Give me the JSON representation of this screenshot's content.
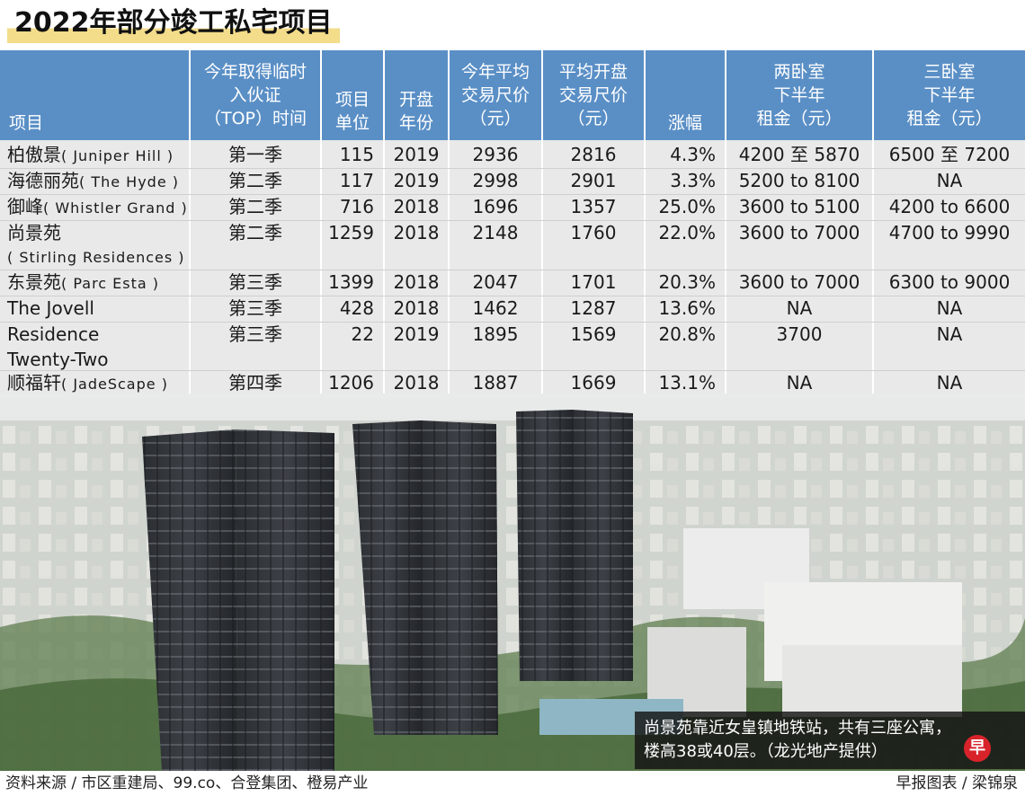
{
  "title": "2022年部分竣工私宅项目",
  "headers": [
    "项目",
    "今年取得临时\n入伙证\n（TOP）时间",
    "项目\n单位",
    "开盘\n年份",
    "今年平均\n交易尺价\n（元）",
    "平均开盘\n交易尺价\n（元）",
    "涨幅",
    "两卧室\n下半年\n租金（元）",
    "三卧室\n下半年\n租金（元）"
  ],
  "rows": [
    {
      "name_cn": "柏傲景",
      "name_en": "( Juniper Hill )",
      "top": "第一季",
      "units": "115",
      "year": "2019",
      "avg_psf": "2936",
      "launch_psf": "2816",
      "rise": "4.3%",
      "rent2": "4200 至 5870",
      "rent3": "6500 至 7200"
    },
    {
      "name_cn": "海德丽苑",
      "name_en": "( The Hyde )",
      "top": "第二季",
      "units": "117",
      "year": "2019",
      "avg_psf": "2998",
      "launch_psf": "2901",
      "rise": "3.3%",
      "rent2": "5200 to 8100",
      "rent3": "NA"
    },
    {
      "name_cn": "御峰",
      "name_en": "( Whistler Grand )",
      "top": "第二季",
      "units": "716",
      "year": "2018",
      "avg_psf": "1696",
      "launch_psf": "1357",
      "rise": "25.0%",
      "rent2": "3600 to 5100",
      "rent3": "4200 to 6600"
    },
    {
      "name_cn": "尚景苑",
      "name_en": "( Stirling Residences )",
      "top": "第二季",
      "units": "1259",
      "year": "2018",
      "avg_psf": "2148",
      "launch_psf": "1760",
      "rise": "22.0%",
      "rent2": "3600 to 7000",
      "rent3": "4700 to 9990"
    },
    {
      "name_cn": "东景苑",
      "name_en": "( Parc Esta )",
      "top": "第三季",
      "units": "1399",
      "year": "2018",
      "avg_psf": "2047",
      "launch_psf": "1701",
      "rise": "20.3%",
      "rent2": "3600 to 7000",
      "rent3": "6300 to 9000"
    },
    {
      "name_cn": "The Jovell",
      "name_en": "",
      "top": "第三季",
      "units": "428",
      "year": "2018",
      "avg_psf": "1462",
      "launch_psf": "1287",
      "rise": "13.6%",
      "rent2": "NA",
      "rent3": "NA"
    },
    {
      "name_cn": "Residence",
      "name_en": "Twenty-Two",
      "top": "第三季",
      "units": "22",
      "year": "2019",
      "avg_psf": "1895",
      "launch_psf": "1569",
      "rise": "20.8%",
      "rent2": "3700",
      "rent3": "NA"
    },
    {
      "name_cn": "顺福轩",
      "name_en": "( JadeScape )",
      "top": "第四季",
      "units": "1206",
      "year": "2018",
      "avg_psf": "1887",
      "launch_psf": "1669",
      "rise": "13.1%",
      "rent2": "NA",
      "rent3": "NA"
    }
  ],
  "caption": "尚景苑靠近女皇镇地铁站，共有三座公寓，\n楼高38或40层。（龙光地产提供）",
  "brand_char": "早",
  "source": "资料来源 / 市区重建局、99.co、合登集团、橙易产业",
  "credit": "早报图表 / 梁锦泉",
  "colors": {
    "header_bg": "#5a8fc6",
    "body_bg": "#e9e9e9",
    "title_underline": "#f3dc8a"
  }
}
